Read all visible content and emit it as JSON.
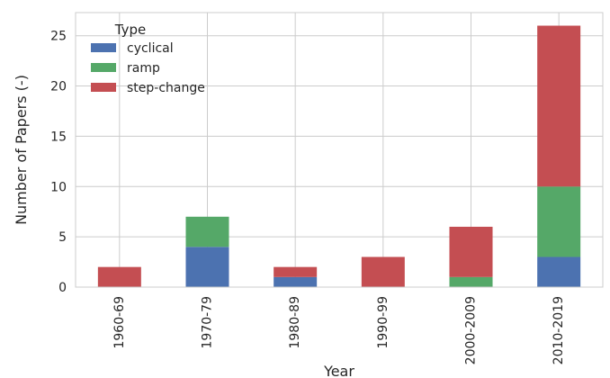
{
  "chart_data": {
    "type": "bar",
    "stacked": true,
    "categories": [
      "1960-69",
      "1970-79",
      "1980-89",
      "1990-99",
      "2000-2009",
      "2010-2019"
    ],
    "series": [
      {
        "name": "cyclical",
        "color": "#4c72b0",
        "values": [
          0,
          4,
          1,
          0,
          0,
          3
        ]
      },
      {
        "name": "ramp",
        "color": "#55a868",
        "values": [
          0,
          3,
          0,
          0,
          1,
          7
        ]
      },
      {
        "name": "step-change",
        "color": "#c44e52",
        "values": [
          2,
          0,
          1,
          3,
          5,
          16
        ]
      }
    ],
    "xlabel": "Year",
    "ylabel": "Number of Papers (-)",
    "ylim": [
      0,
      27.3
    ],
    "yticks": [
      0,
      5,
      10,
      15,
      20,
      25
    ],
    "grid": true,
    "legend": {
      "title": "Type",
      "position": "top-left"
    }
  }
}
